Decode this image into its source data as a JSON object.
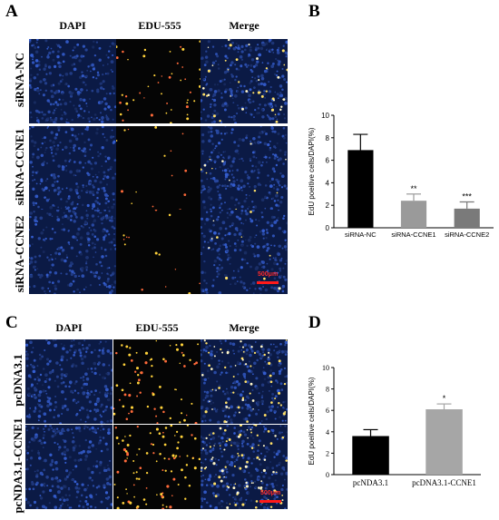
{
  "panels": {
    "A": {
      "letter": "A",
      "col_headers": [
        "DAPI",
        "EDU-555",
        "Merge"
      ],
      "row_labels": [
        "siRNA-NC",
        "siRNA-CCNE1",
        "siRNA-CCNE2"
      ],
      "scale_label": "500μm"
    },
    "B": {
      "letter": "B"
    },
    "C": {
      "letter": "C",
      "col_headers": [
        "DAPI",
        "EDU-555",
        "Merge"
      ],
      "row_labels": [
        "pcDNA3.1",
        "pcNDA3.1-CCNE1"
      ],
      "scale_label": "500μm"
    },
    "D": {
      "letter": "D"
    }
  },
  "colors": {
    "dapi": "#1a3a8c",
    "edu_dot": "#ffd23a",
    "bar_black": "#000000",
    "bar_gray1": "#9a9a9a",
    "bar_gray2": "#7a7a7a",
    "bar_gray_d": "#a6a6a6",
    "scale": "#ff1a1a"
  },
  "chart_data": [
    {
      "type": "bar",
      "categories": [
        "siRNA-NC",
        "siRNA-CCNE1",
        "siRNA-CCNE2"
      ],
      "values": [
        6.9,
        2.4,
        1.7
      ],
      "errors": [
        1.4,
        0.6,
        0.6
      ],
      "significance": [
        "",
        "**",
        "***"
      ],
      "ylabel": "EdU poeitive cells/DAPI(%)",
      "ylim": [
        0,
        10
      ],
      "yticks": [
        "0",
        "2",
        "4",
        "6",
        "8",
        "10"
      ],
      "grid": false
    },
    {
      "type": "bar",
      "categories": [
        "pcNDA3.1",
        "pcDNA3.1-CCNE1"
      ],
      "values": [
        3.6,
        6.1
      ],
      "errors": [
        0.6,
        0.5
      ],
      "significance": [
        "",
        "*"
      ],
      "ylabel": "EdU poeitive cells/DAPI(%)",
      "ylim": [
        0,
        10
      ],
      "yticks": [
        "0",
        "2",
        "4",
        "6",
        "8",
        "10"
      ],
      "grid": false
    }
  ]
}
